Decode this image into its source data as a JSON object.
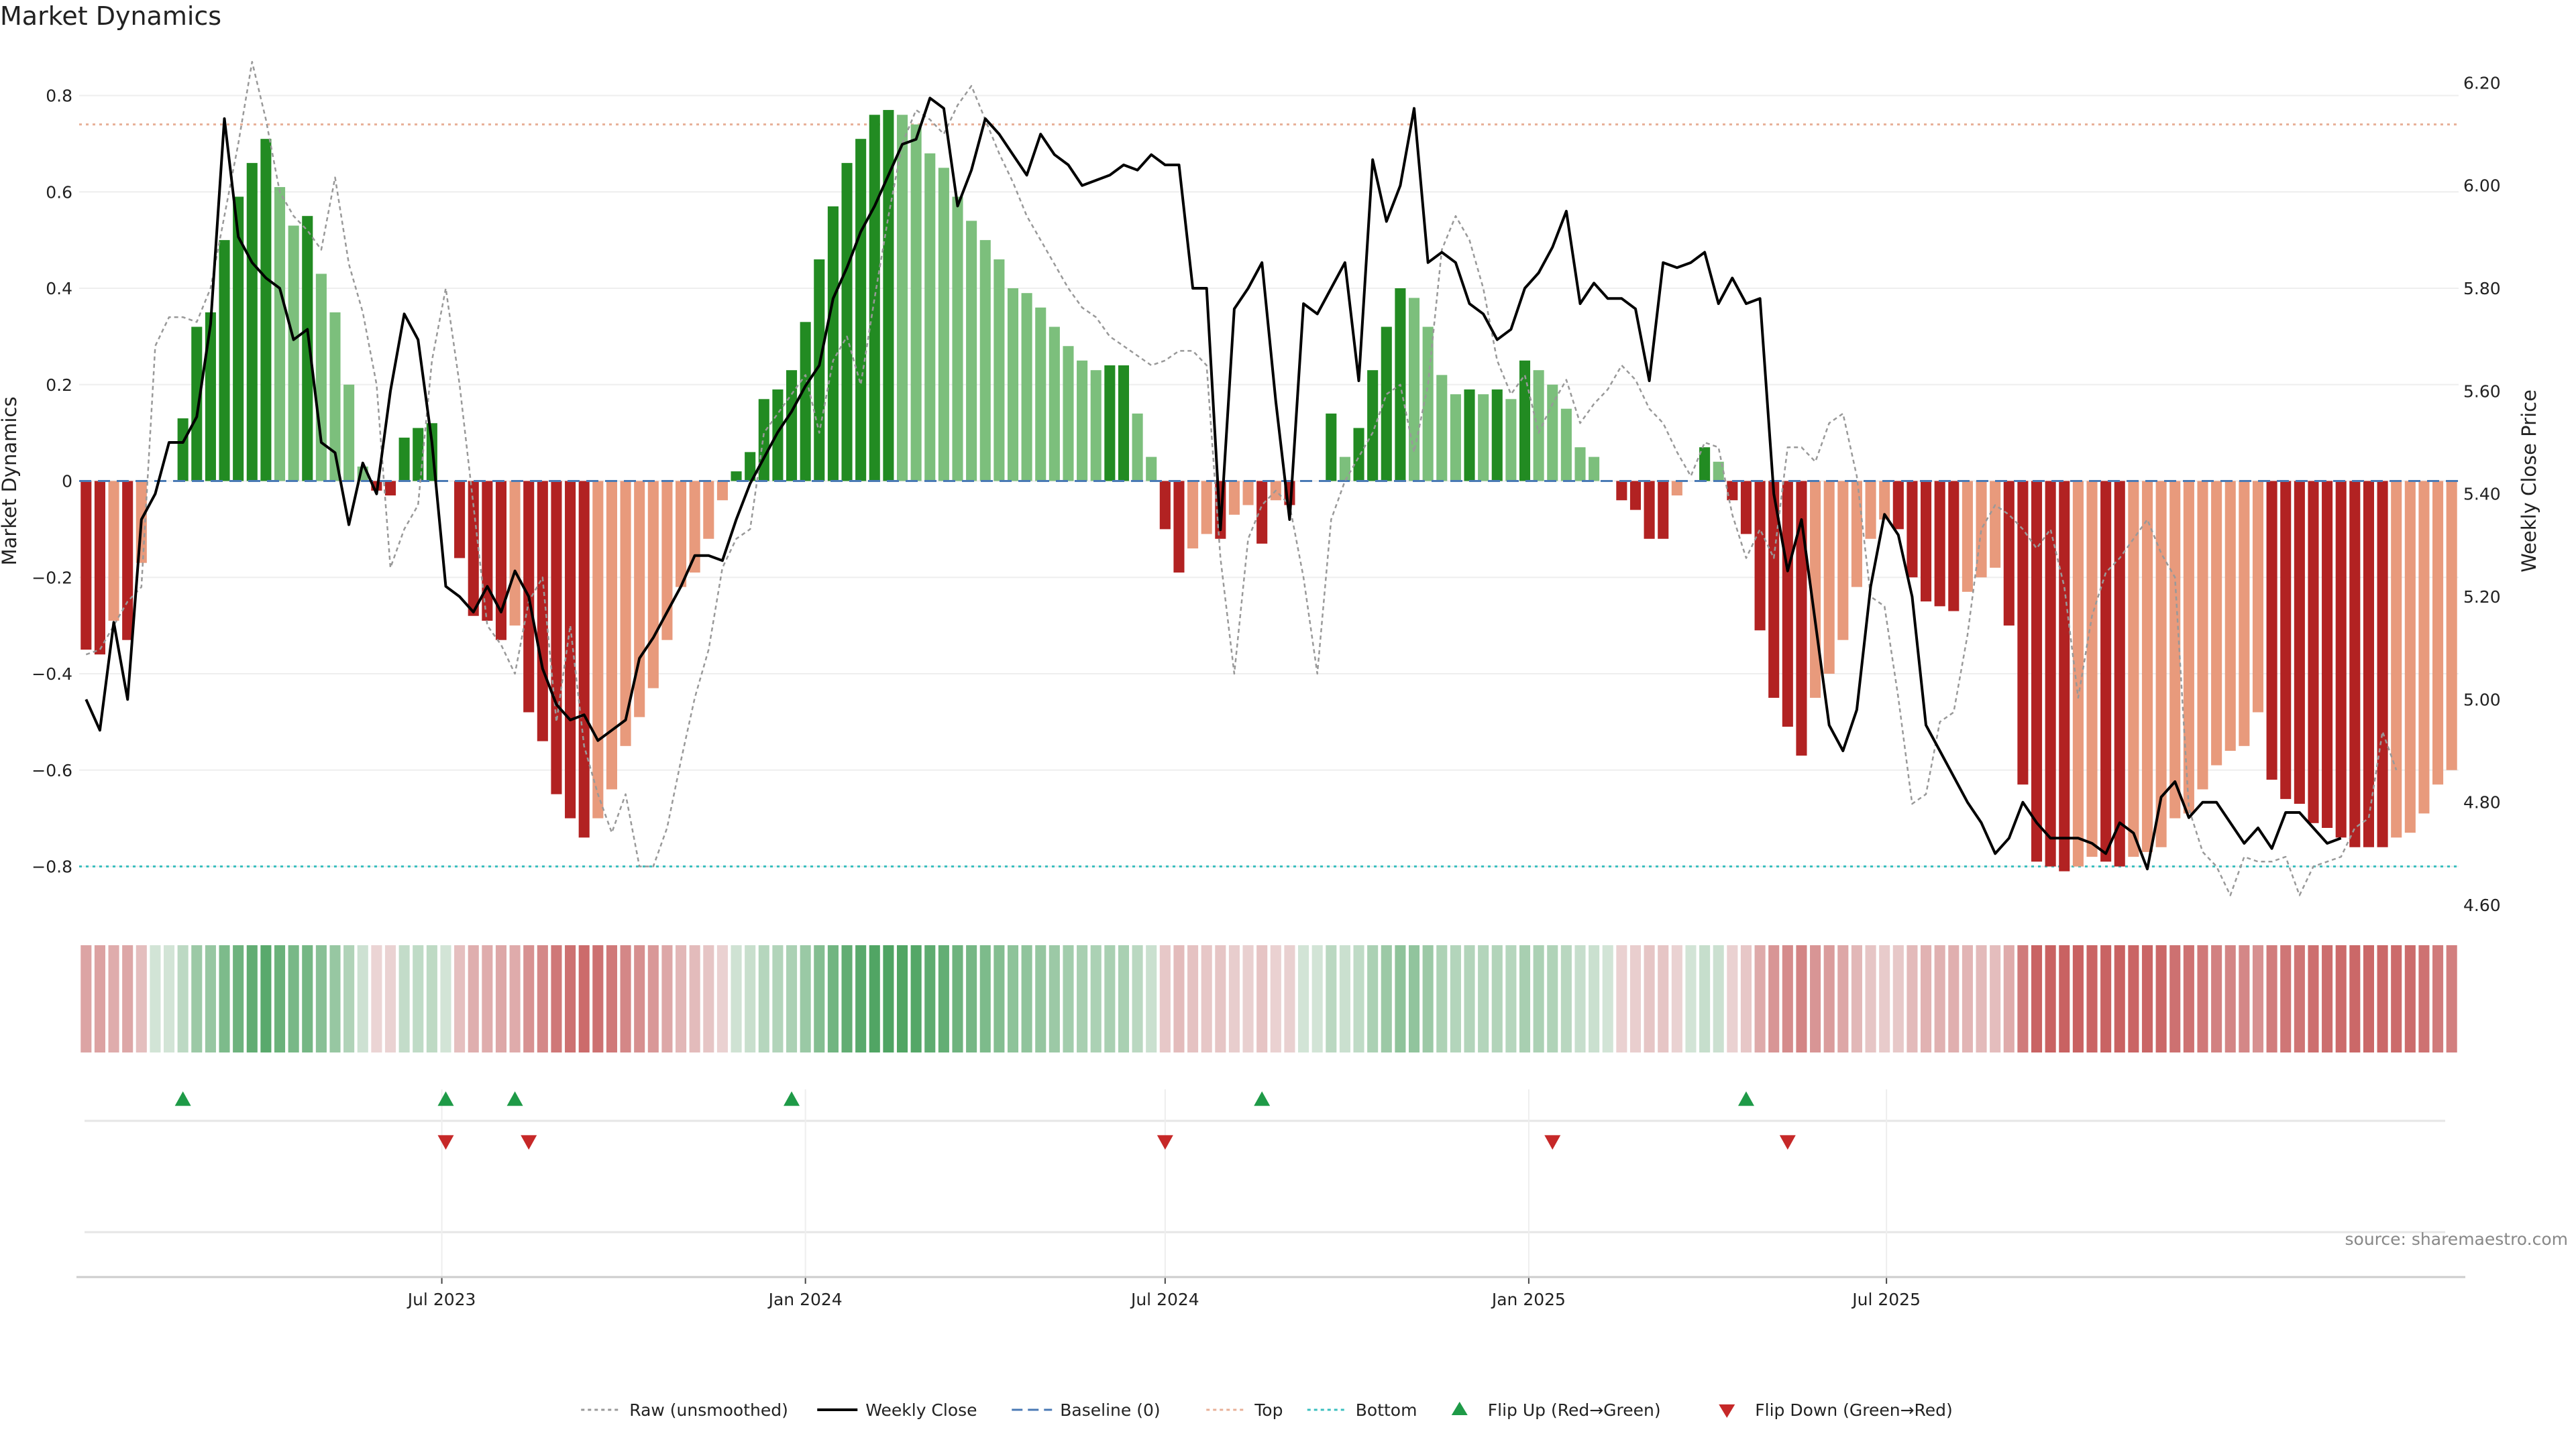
{
  "title": "Market Dynamics",
  "source": "source: sharemaestro.com",
  "chart_data": {
    "type": "bar",
    "title": "Market Dynamics",
    "ylabel_left": "Market Dynamics",
    "ylabel_right": "Weekly Close Price",
    "ylim_left": [
      -0.88,
      0.88
    ],
    "ylim_right": [
      4.6,
      6.25
    ],
    "yticks_left": [
      0.8,
      0.6,
      0.4,
      0.2,
      0,
      -0.2,
      -0.4,
      -0.6,
      -0.8
    ],
    "yticks_left_labels": [
      "0.8",
      "0.6",
      "0.4",
      "0.2",
      "0",
      "−0.2",
      "−0.4",
      "−0.6",
      "−0.8"
    ],
    "yticks_right": [
      6.2,
      6.0,
      5.8,
      5.6,
      5.4,
      5.2,
      5.0,
      4.8,
      4.6
    ],
    "yticks_right_labels": [
      "6.20",
      "6.00",
      "5.80",
      "5.60",
      "5.40",
      "5.20",
      "5.00",
      "4.80",
      "4.60"
    ],
    "top_level": 0.74,
    "bottom_level": -0.8,
    "baseline": 0,
    "x_start": "2023-01-02",
    "x_ticks": [
      {
        "label": "Jul 2023",
        "date": "2023-07-01"
      },
      {
        "label": "Jan 2024",
        "date": "2024-01-01"
      },
      {
        "label": "Jul 2024",
        "date": "2024-07-01"
      },
      {
        "label": "Jan 2025",
        "date": "2025-01-01"
      },
      {
        "label": "Jul 2025",
        "date": "2025-07-01"
      }
    ],
    "series": [
      {
        "name": "Raw (unsmoothed)",
        "style": "dotted",
        "color": "#999999",
        "values": [
          -0.36,
          -0.35,
          -0.3,
          -0.25,
          -0.22,
          0.28,
          0.34,
          0.34,
          0.33,
          0.4,
          0.55,
          0.7,
          0.87,
          0.75,
          0.6,
          0.55,
          0.52,
          0.48,
          0.63,
          0.45,
          0.35,
          0.2,
          -0.18,
          -0.1,
          -0.05,
          0.25,
          0.4,
          0.2,
          -0.05,
          -0.3,
          -0.34,
          -0.4,
          -0.25,
          -0.2,
          -0.5,
          -0.3,
          -0.55,
          -0.65,
          -0.73,
          -0.65,
          -0.8,
          -0.8,
          -0.72,
          -0.58,
          -0.45,
          -0.35,
          -0.18,
          -0.12,
          -0.1,
          0.1,
          0.14,
          0.18,
          0.22,
          0.1,
          0.25,
          0.3,
          0.2,
          0.38,
          0.55,
          0.7,
          0.77,
          0.75,
          0.72,
          0.78,
          0.82,
          0.75,
          0.68,
          0.62,
          0.55,
          0.5,
          0.45,
          0.4,
          0.36,
          0.34,
          0.3,
          0.28,
          0.26,
          0.24,
          0.25,
          0.27,
          0.27,
          0.24,
          -0.16,
          -0.4,
          -0.12,
          -0.05,
          -0.02,
          -0.05,
          -0.2,
          -0.4,
          -0.08,
          0.0,
          0.05,
          0.1,
          0.18,
          0.2,
          0.06,
          0.2,
          0.48,
          0.55,
          0.5,
          0.4,
          0.25,
          0.18,
          0.22,
          0.1,
          0.16,
          0.21,
          0.12,
          0.16,
          0.19,
          0.24,
          0.21,
          0.15,
          0.12,
          0.06,
          0.01,
          0.08,
          0.07,
          -0.07,
          -0.16,
          -0.1,
          -0.16,
          0.07,
          0.07,
          0.04,
          0.12,
          0.14,
          0.01,
          -0.24,
          -0.26,
          -0.45,
          -0.67,
          -0.65,
          -0.5,
          -0.48,
          -0.32,
          -0.1,
          -0.05,
          -0.07,
          -0.1,
          -0.14,
          -0.1,
          -0.22,
          -0.45,
          -0.28,
          -0.19,
          -0.16,
          -0.12,
          -0.08,
          -0.15,
          -0.2,
          -0.68,
          -0.77,
          -0.8,
          -0.86,
          -0.78,
          -0.79,
          -0.79,
          -0.78,
          -0.86,
          -0.8,
          -0.79,
          -0.78,
          -0.72,
          -0.7,
          -0.52,
          -0.6
        ]
      },
      {
        "name": "Weekly Close",
        "style": "solid",
        "color": "#000000",
        "values": [
          5.0,
          4.94,
          5.15,
          5.0,
          5.35,
          5.4,
          5.5,
          5.5,
          5.55,
          5.73,
          6.13,
          5.9,
          5.85,
          5.82,
          5.8,
          5.7,
          5.72,
          5.5,
          5.48,
          5.34,
          5.46,
          5.4,
          5.6,
          5.75,
          5.7,
          5.5,
          5.22,
          5.2,
          5.17,
          5.22,
          5.17,
          5.25,
          5.2,
          5.06,
          4.99,
          4.96,
          4.97,
          4.92,
          4.94,
          4.96,
          5.08,
          5.12,
          5.17,
          5.22,
          5.28,
          5.28,
          5.27,
          5.35,
          5.42,
          5.47,
          5.52,
          5.56,
          5.61,
          5.65,
          5.78,
          5.84,
          5.91,
          5.96,
          6.02,
          6.08,
          6.09,
          6.17,
          6.15,
          5.96,
          6.03,
          6.13,
          6.1,
          6.06,
          6.02,
          6.1,
          6.06,
          6.04,
          6.0,
          6.01,
          6.02,
          6.04,
          6.03,
          6.06,
          6.04,
          6.04,
          5.8,
          5.8,
          5.33,
          5.76,
          5.8,
          5.85,
          5.58,
          5.35,
          5.77,
          5.75,
          5.8,
          5.85,
          5.62,
          6.05,
          5.93,
          6.0,
          6.15,
          5.85,
          5.87,
          5.85,
          5.77,
          5.75,
          5.7,
          5.72,
          5.8,
          5.83,
          5.88,
          5.95,
          5.77,
          5.81,
          5.78,
          5.78,
          5.76,
          5.62,
          5.85,
          5.84,
          5.85,
          5.87,
          5.77,
          5.82,
          5.77,
          5.78,
          5.4,
          5.25,
          5.35,
          5.15,
          4.95,
          4.9,
          4.98,
          5.22,
          5.36,
          5.32,
          5.2,
          4.95,
          4.9,
          4.85,
          4.8,
          4.76,
          4.7,
          4.73,
          4.8,
          4.76,
          4.73,
          4.73,
          4.73,
          4.72,
          4.7,
          4.76,
          4.74,
          4.67,
          4.81,
          4.84,
          4.77,
          4.8,
          4.8,
          4.76,
          4.72,
          4.75,
          4.71,
          4.78,
          4.78,
          4.75,
          4.72,
          4.73
        ]
      }
    ],
    "bars": [
      -0.35,
      -0.36,
      -0.29,
      -0.33,
      -0.17,
      0.0,
      0.0,
      0.13,
      0.32,
      0.35,
      0.5,
      0.59,
      0.66,
      0.71,
      0.61,
      0.53,
      0.55,
      0.43,
      0.35,
      0.2,
      0.03,
      -0.02,
      -0.03,
      0.09,
      0.11,
      0.12,
      0.0,
      -0.16,
      -0.28,
      -0.29,
      -0.33,
      -0.3,
      -0.48,
      -0.54,
      -0.65,
      -0.7,
      -0.74,
      -0.7,
      -0.64,
      -0.55,
      -0.49,
      -0.43,
      -0.33,
      -0.22,
      -0.19,
      -0.12,
      -0.04,
      0.02,
      0.06,
      0.17,
      0.19,
      0.23,
      0.33,
      0.46,
      0.57,
      0.66,
      0.71,
      0.76,
      0.77,
      0.76,
      0.74,
      0.68,
      0.65,
      0.59,
      0.54,
      0.5,
      0.46,
      0.4,
      0.39,
      0.36,
      0.32,
      0.28,
      0.25,
      0.23,
      0.24,
      0.24,
      0.14,
      0.05,
      -0.1,
      -0.19,
      -0.14,
      -0.11,
      -0.12,
      -0.07,
      -0.05,
      -0.13,
      -0.04,
      -0.05,
      0.0,
      0.0,
      0.14,
      0.05,
      0.11,
      0.23,
      0.32,
      0.4,
      0.38,
      0.32,
      0.22,
      0.18,
      0.19,
      0.18,
      0.19,
      0.17,
      0.25,
      0.23,
      0.2,
      0.15,
      0.07,
      0.05,
      0.0,
      -0.04,
      -0.06,
      -0.12,
      -0.12,
      -0.03,
      0.0,
      0.07,
      0.04,
      -0.04,
      -0.11,
      -0.31,
      -0.45,
      -0.51,
      -0.57,
      -0.45,
      -0.4,
      -0.33,
      -0.22,
      -0.12,
      -0.08,
      -0.1,
      -0.2,
      -0.25,
      -0.26,
      -0.27,
      -0.23,
      -0.2,
      -0.18,
      -0.3,
      -0.63,
      -0.79,
      -0.8,
      -0.81,
      -0.8,
      -0.78,
      -0.79,
      -0.8,
      -0.78,
      -0.77,
      -0.76,
      -0.7,
      -0.69,
      -0.64,
      -0.59,
      -0.56,
      -0.55,
      -0.48,
      -0.62,
      -0.66,
      -0.67,
      -0.71,
      -0.72,
      -0.74,
      -0.76,
      -0.76,
      -0.76,
      -0.74,
      -0.73,
      -0.69,
      -0.63,
      -0.6
    ],
    "bar_colors": {
      "strong_green": "#228b22",
      "light_green": "#7cbf7c",
      "strong_red": "#b22222",
      "light_red": "#e89a7c"
    },
    "line_colors": {
      "baseline": "#4a7ab5",
      "top": "#e8b098",
      "bottom": "#3bbfbf"
    },
    "strip_colors": {
      "high": "#4aa25e",
      "low": "#c96262"
    },
    "flip_up": [
      "2023-02-20",
      "2023-07-03",
      "2023-08-07",
      "2023-12-25",
      "2024-08-19",
      "2025-04-21"
    ],
    "flip_down": [
      "2023-07-03",
      "2023-08-14",
      "2024-07-01",
      "2025-01-13",
      "2025-05-12"
    ],
    "flip_colors": {
      "up": "#1e9a47",
      "down": "#c62828"
    },
    "legend": [
      {
        "label": "Raw (unsmoothed)",
        "kind": "dotted",
        "color": "#999999"
      },
      {
        "label": "Weekly Close",
        "kind": "solid",
        "color": "#000000"
      },
      {
        "label": "Baseline (0)",
        "kind": "dashed",
        "color": "#4a7ab5"
      },
      {
        "label": "Top",
        "kind": "dotted",
        "color": "#e8b098"
      },
      {
        "label": "Bottom",
        "kind": "dotted",
        "color": "#3bbfbf"
      },
      {
        "label": "Flip Up (Red→Green)",
        "kind": "triangle-up",
        "color": "#1e9a47"
      },
      {
        "label": "Flip Down (Green→Red)",
        "kind": "triangle-down",
        "color": "#c62828"
      }
    ]
  }
}
